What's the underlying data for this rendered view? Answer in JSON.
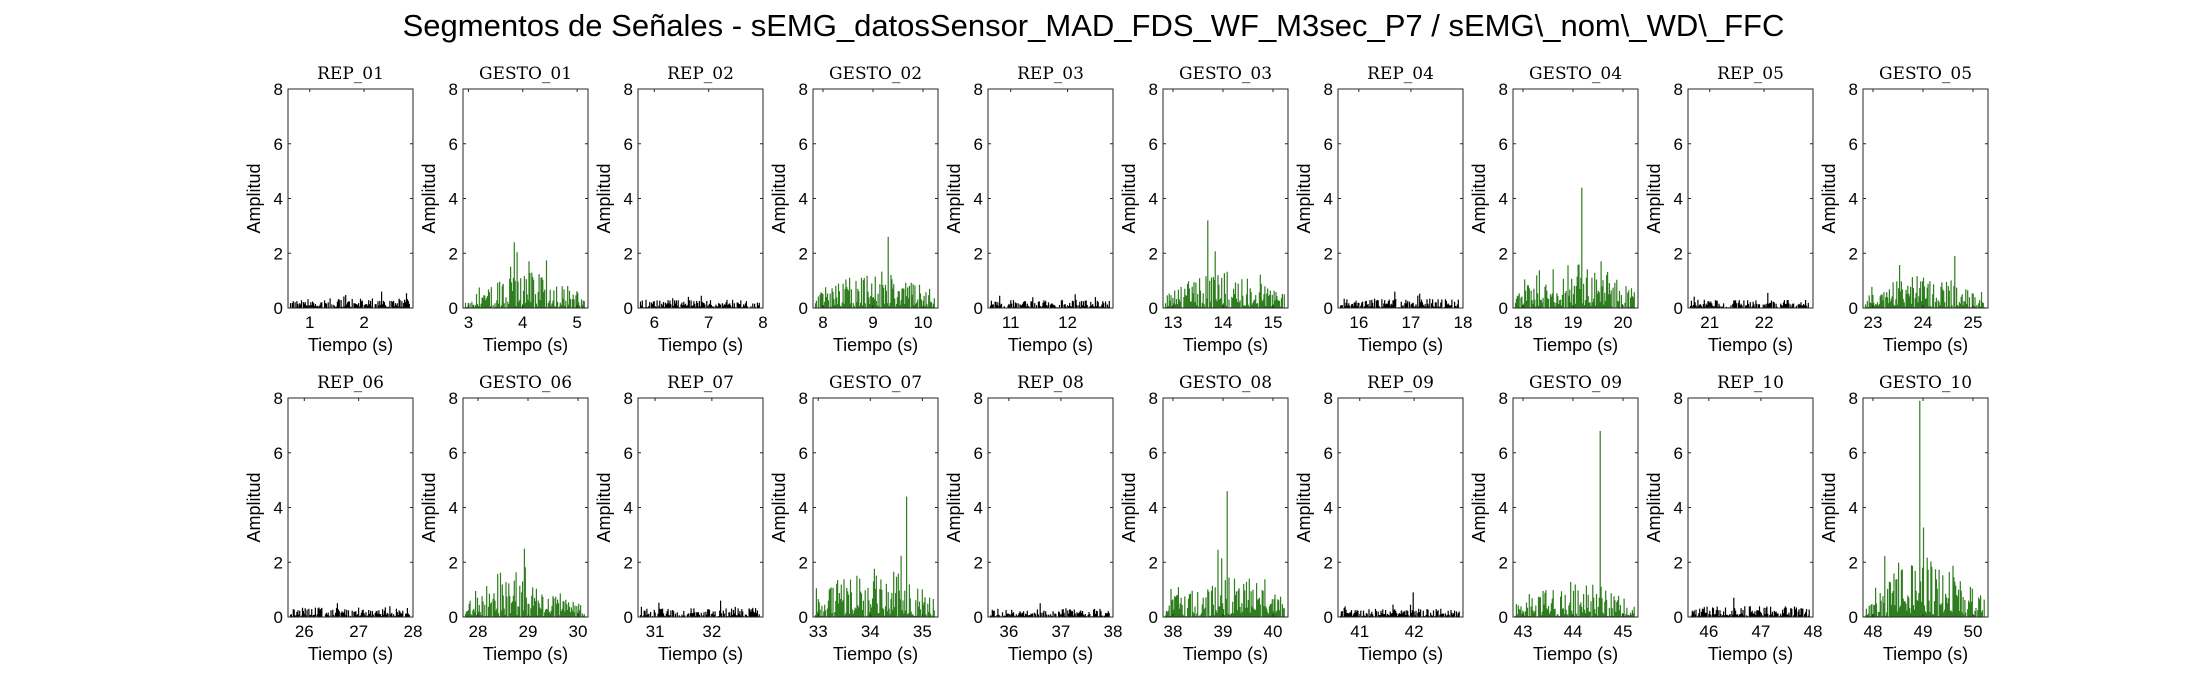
{
  "figure": {
    "title": "Segmentos de Señales - sEMG_datosSensor_MAD_FDS_WF_M3sec_P7 / sEMG\\_nom\\_WD\\_FFC",
    "colors": {
      "rep": "#000000",
      "gesto": "#2e7d1e",
      "axis": "#262626",
      "background": "#ffffff"
    }
  },
  "chart_data": [
    {
      "type": "bar",
      "title": "REP_01",
      "xlabel": "Tiempo (s)",
      "ylabel": "Amplitud",
      "xlim": [
        0.6,
        2.9
      ],
      "ylim": [
        0,
        8
      ],
      "xticks": [
        1,
        2
      ],
      "yticks": [
        0,
        2,
        4,
        6,
        8
      ],
      "series": "rep",
      "peak": 0.6,
      "typical": 0.35,
      "seed": 11
    },
    {
      "type": "bar",
      "title": "GESTO_01",
      "xlabel": "Tiempo (s)",
      "ylabel": "Amplitud",
      "xlim": [
        2.9,
        5.2
      ],
      "ylim": [
        0,
        8
      ],
      "xticks": [
        3,
        4,
        5
      ],
      "yticks": [
        0,
        2,
        4,
        6,
        8
      ],
      "series": "gesto",
      "peak": 2.4,
      "typical": 1.3,
      "seed": 12
    },
    {
      "type": "bar",
      "title": "REP_02",
      "xlabel": "Tiempo (s)",
      "ylabel": "Amplitud",
      "xlim": [
        5.7,
        8.0
      ],
      "ylim": [
        0,
        8
      ],
      "xticks": [
        6,
        7,
        8
      ],
      "yticks": [
        0,
        2,
        4,
        6,
        8
      ],
      "series": "rep",
      "peak": 0.45,
      "typical": 0.3,
      "seed": 13
    },
    {
      "type": "bar",
      "title": "GESTO_02",
      "xlabel": "Tiempo (s)",
      "ylabel": "Amplitud",
      "xlim": [
        7.8,
        10.3
      ],
      "ylim": [
        0,
        8
      ],
      "xticks": [
        8,
        9,
        10
      ],
      "yticks": [
        0,
        2,
        4,
        6,
        8
      ],
      "series": "gesto",
      "peak": 2.6,
      "typical": 1.3,
      "seed": 14
    },
    {
      "type": "bar",
      "title": "REP_03",
      "xlabel": "Tiempo (s)",
      "ylabel": "Amplitud",
      "xlim": [
        10.6,
        12.8
      ],
      "ylim": [
        0,
        8
      ],
      "xticks": [
        11,
        12
      ],
      "yticks": [
        0,
        2,
        4,
        6,
        8
      ],
      "series": "rep",
      "peak": 0.5,
      "typical": 0.3,
      "seed": 15
    },
    {
      "type": "bar",
      "title": "GESTO_03",
      "xlabel": "Tiempo (s)",
      "ylabel": "Amplitud",
      "xlim": [
        12.8,
        15.3
      ],
      "ylim": [
        0,
        8
      ],
      "xticks": [
        13,
        14,
        15
      ],
      "yticks": [
        0,
        2,
        4,
        6,
        8
      ],
      "series": "gesto",
      "peak": 3.2,
      "typical": 1.4,
      "seed": 16
    },
    {
      "type": "bar",
      "title": "REP_04",
      "xlabel": "Tiempo (s)",
      "ylabel": "Amplitud",
      "xlim": [
        15.6,
        18.0
      ],
      "ylim": [
        0,
        8
      ],
      "xticks": [
        16,
        17,
        18
      ],
      "yticks": [
        0,
        2,
        4,
        6,
        8
      ],
      "series": "rep",
      "peak": 0.6,
      "typical": 0.35,
      "seed": 17
    },
    {
      "type": "bar",
      "title": "GESTO_04",
      "xlabel": "Tiempo (s)",
      "ylabel": "Amplitud",
      "xlim": [
        17.8,
        20.3
      ],
      "ylim": [
        0,
        8
      ],
      "xticks": [
        18,
        19,
        20
      ],
      "yticks": [
        0,
        2,
        4,
        6,
        8
      ],
      "series": "gesto",
      "peak": 4.4,
      "typical": 1.6,
      "seed": 18
    },
    {
      "type": "bar",
      "title": "REP_05",
      "xlabel": "Tiempo (s)",
      "ylabel": "Amplitud",
      "xlim": [
        20.6,
        22.9
      ],
      "ylim": [
        0,
        8
      ],
      "xticks": [
        21,
        22
      ],
      "yticks": [
        0,
        2,
        4,
        6,
        8
      ],
      "series": "rep",
      "peak": 0.55,
      "typical": 0.3,
      "seed": 19
    },
    {
      "type": "bar",
      "title": "GESTO_05",
      "xlabel": "Tiempo (s)",
      "ylabel": "Amplitud",
      "xlim": [
        22.8,
        25.3
      ],
      "ylim": [
        0,
        8
      ],
      "xticks": [
        23,
        24,
        25
      ],
      "yticks": [
        0,
        2,
        4,
        6,
        8
      ],
      "series": "gesto",
      "peak": 1.9,
      "typical": 1.2,
      "seed": 20
    },
    {
      "type": "bar",
      "title": "REP_06",
      "xlabel": "Tiempo (s)",
      "ylabel": "Amplitud",
      "xlim": [
        25.7,
        28.0
      ],
      "ylim": [
        0,
        8
      ],
      "xticks": [
        26,
        27,
        28
      ],
      "yticks": [
        0,
        2,
        4,
        6,
        8
      ],
      "series": "rep",
      "peak": 0.5,
      "typical": 0.35,
      "seed": 21
    },
    {
      "type": "bar",
      "title": "GESTO_06",
      "xlabel": "Tiempo (s)",
      "ylabel": "Amplitud",
      "xlim": [
        27.7,
        30.2
      ],
      "ylim": [
        0,
        8
      ],
      "xticks": [
        28,
        29,
        30
      ],
      "yticks": [
        0,
        2,
        4,
        6,
        8
      ],
      "series": "gesto",
      "peak": 2.5,
      "typical": 1.4,
      "seed": 22
    },
    {
      "type": "bar",
      "title": "REP_07",
      "xlabel": "Tiempo (s)",
      "ylabel": "Amplitud",
      "xlim": [
        30.7,
        32.9
      ],
      "ylim": [
        0,
        8
      ],
      "xticks": [
        31,
        32
      ],
      "yticks": [
        0,
        2,
        4,
        6,
        8
      ],
      "series": "rep",
      "peak": 0.6,
      "typical": 0.35,
      "seed": 23
    },
    {
      "type": "bar",
      "title": "GESTO_07",
      "xlabel": "Tiempo (s)",
      "ylabel": "Amplitud",
      "xlim": [
        32.9,
        35.3
      ],
      "ylim": [
        0,
        8
      ],
      "xticks": [
        33,
        34,
        35
      ],
      "yticks": [
        0,
        2,
        4,
        6,
        8
      ],
      "series": "gesto",
      "peak": 4.4,
      "typical": 1.8,
      "seed": 24
    },
    {
      "type": "bar",
      "title": "REP_08",
      "xlabel": "Tiempo (s)",
      "ylabel": "Amplitud",
      "xlim": [
        35.6,
        38.0
      ],
      "ylim": [
        0,
        8
      ],
      "xticks": [
        36,
        37,
        38
      ],
      "yticks": [
        0,
        2,
        4,
        6,
        8
      ],
      "series": "rep",
      "peak": 0.5,
      "typical": 0.3,
      "seed": 25
    },
    {
      "type": "bar",
      "title": "GESTO_08",
      "xlabel": "Tiempo (s)",
      "ylabel": "Amplitud",
      "xlim": [
        37.8,
        40.3
      ],
      "ylim": [
        0,
        8
      ],
      "xticks": [
        38,
        39,
        40
      ],
      "yticks": [
        0,
        2,
        4,
        6,
        8
      ],
      "series": "gesto",
      "peak": 4.6,
      "typical": 1.6,
      "seed": 26
    },
    {
      "type": "bar",
      "title": "REP_09",
      "xlabel": "Tiempo (s)",
      "ylabel": "Amplitud",
      "xlim": [
        40.6,
        42.9
      ],
      "ylim": [
        0,
        8
      ],
      "xticks": [
        41,
        42
      ],
      "yticks": [
        0,
        2,
        4,
        6,
        8
      ],
      "series": "rep",
      "peak": 0.9,
      "typical": 0.3,
      "seed": 27
    },
    {
      "type": "bar",
      "title": "GESTO_09",
      "xlabel": "Tiempo (s)",
      "ylabel": "Amplitud",
      "xlim": [
        42.8,
        45.3
      ],
      "ylim": [
        0,
        8
      ],
      "xticks": [
        43,
        44,
        45
      ],
      "yticks": [
        0,
        2,
        4,
        6,
        8
      ],
      "series": "gesto",
      "peak": 6.8,
      "typical": 1.3,
      "seed": 28
    },
    {
      "type": "bar",
      "title": "REP_10",
      "xlabel": "Tiempo (s)",
      "ylabel": "Amplitud",
      "xlim": [
        45.6,
        48.0
      ],
      "ylim": [
        0,
        8
      ],
      "xticks": [
        46,
        47,
        48
      ],
      "yticks": [
        0,
        2,
        4,
        6,
        8
      ],
      "series": "rep",
      "peak": 0.7,
      "typical": 0.4,
      "seed": 29
    },
    {
      "type": "bar",
      "title": "GESTO_10",
      "xlabel": "Tiempo (s)",
      "ylabel": "Amplitud",
      "xlim": [
        47.8,
        50.3
      ],
      "ylim": [
        0,
        8
      ],
      "xticks": [
        48,
        49,
        50
      ],
      "yticks": [
        0,
        2,
        4,
        6,
        8
      ],
      "series": "gesto",
      "peak": 7.9,
      "typical": 2.2,
      "seed": 30
    }
  ]
}
